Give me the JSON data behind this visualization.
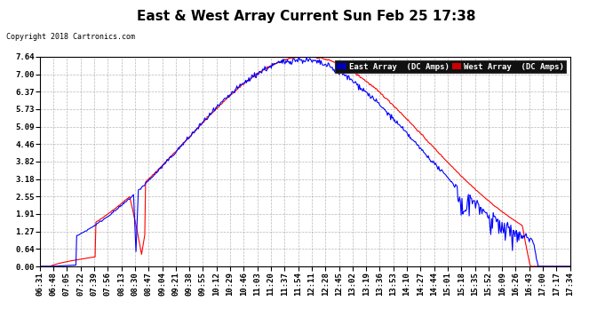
{
  "title": "East & West Array Current Sun Feb 25 17:38",
  "copyright": "Copyright 2018 Cartronics.com",
  "legend_east": "East Array  (DC Amps)",
  "legend_west": "West Array  (DC Amps)",
  "east_color": "#0000ff",
  "west_color": "#ff0000",
  "legend_east_bg": "#0000bb",
  "legend_west_bg": "#cc0000",
  "yticks": [
    0.0,
    0.64,
    1.27,
    1.91,
    2.55,
    3.18,
    3.82,
    4.46,
    5.09,
    5.73,
    6.37,
    7.0,
    7.64
  ],
  "ymax": 7.64,
  "ymin": 0.0,
  "background_color": "#ffffff",
  "plot_bg_color": "#ffffff",
  "grid_color": "#999999",
  "title_fontsize": 11,
  "tick_fontsize": 6.5,
  "x_tick_labels": [
    "06:31",
    "06:48",
    "07:05",
    "07:22",
    "07:39",
    "07:56",
    "08:13",
    "08:30",
    "08:47",
    "09:04",
    "09:21",
    "09:38",
    "09:55",
    "10:12",
    "10:29",
    "10:46",
    "11:03",
    "11:20",
    "11:37",
    "11:54",
    "12:11",
    "12:28",
    "12:45",
    "13:02",
    "13:19",
    "13:36",
    "13:53",
    "14:10",
    "14:27",
    "14:44",
    "15:01",
    "15:18",
    "15:35",
    "15:52",
    "16:09",
    "16:26",
    "16:43",
    "17:00",
    "17:17",
    "17:34"
  ]
}
